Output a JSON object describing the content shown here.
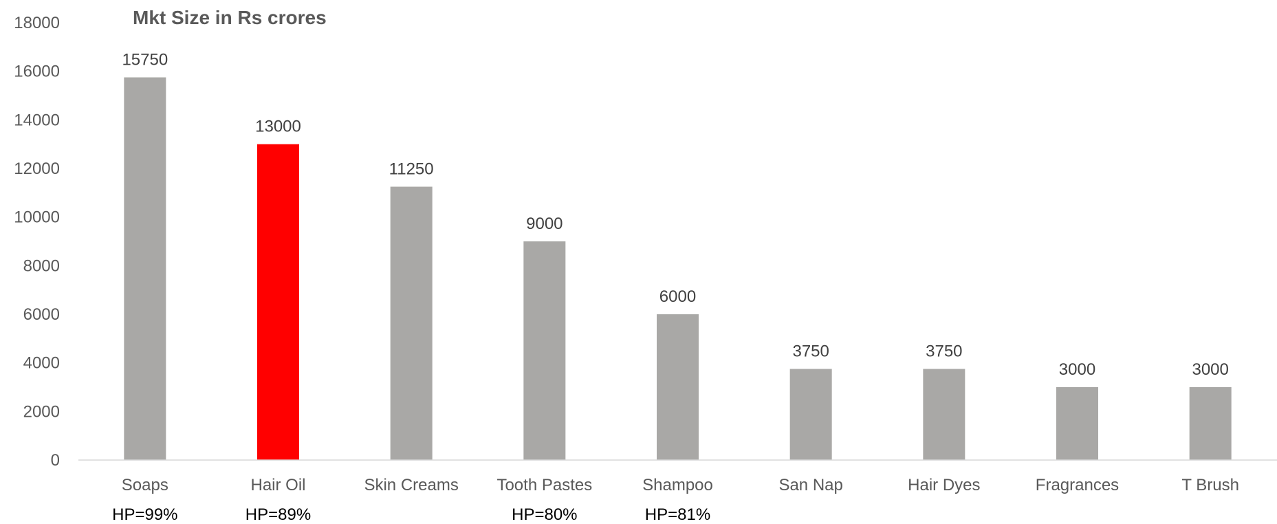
{
  "chart_data": {
    "type": "bar",
    "title": "Mkt Size in Rs crores",
    "xlabel": "",
    "ylabel": "",
    "categories": [
      "Soaps",
      "Hair Oil",
      "Skin Creams",
      "Tooth Pastes",
      "Shampoo",
      "San Nap",
      "Hair Dyes",
      "Fragrances",
      "T Brush"
    ],
    "values": [
      15750,
      13000,
      11250,
      9000,
      6000,
      3750,
      3750,
      3000,
      3000
    ],
    "annotations": [
      "HP=99%",
      "HP=89%",
      "",
      "HP=80%",
      "HP=81%",
      "",
      "",
      "",
      ""
    ],
    "ylim": [
      0,
      18000
    ],
    "yticks": [
      0,
      2000,
      4000,
      6000,
      8000,
      10000,
      12000,
      14000,
      16000,
      18000
    ],
    "grid": false,
    "legend": "none",
    "colors": {
      "default_bar": "#A9A8A6",
      "highlight_bar": "#FF0000",
      "highlight_category": "Hair Oil",
      "axis": "#D9D9D9"
    }
  }
}
